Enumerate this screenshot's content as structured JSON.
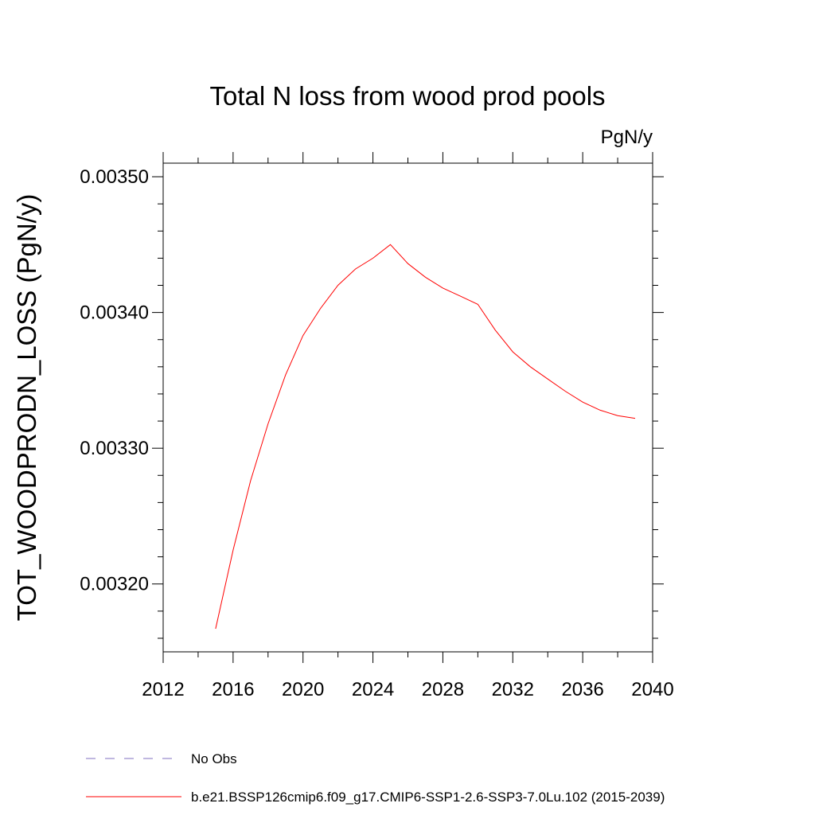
{
  "chart_data": {
    "type": "line",
    "title": "Total N loss from wood prod pools",
    "units_label": "PgN/y",
    "ylabel": "TOT_WOODPRODN_LOSS  (PgN/y)",
    "xlabel": "",
    "xlim": [
      2012,
      2040
    ],
    "ylim": [
      0.00315,
      0.00351
    ],
    "x_ticks": [
      2012,
      2016,
      2020,
      2024,
      2028,
      2032,
      2036,
      2040
    ],
    "x_tick_labels": [
      "2012",
      "2016",
      "2020",
      "2024",
      "2028",
      "2032",
      "2036",
      "2040"
    ],
    "y_ticks": [
      0.0032,
      0.0033,
      0.0034,
      0.0035
    ],
    "y_tick_labels": [
      "0.00320",
      "0.00330",
      "0.00340",
      "0.00350"
    ],
    "grid": false,
    "legend_position": "bottom",
    "series": [
      {
        "name": "b.e21.BSSP126cmip6.f09_g17.CMIP6-SSP1-2.6-SSP3-7.0Lu.102 (2015-2039)",
        "color": "#ff0000",
        "style": "solid",
        "x": [
          2015,
          2016,
          2017,
          2018,
          2019,
          2020,
          2021,
          2022,
          2023,
          2024,
          2025,
          2026,
          2027,
          2028,
          2029,
          2030,
          2031,
          2032,
          2033,
          2034,
          2035,
          2036,
          2037,
          2038,
          2039
        ],
        "y": [
          0.003167,
          0.003225,
          0.003276,
          0.003318,
          0.003354,
          0.003383,
          0.003403,
          0.00342,
          0.003432,
          0.00344,
          0.00345,
          0.003436,
          0.003426,
          0.003418,
          0.003412,
          0.003406,
          0.003387,
          0.003371,
          0.00336,
          0.003351,
          0.003342,
          0.003334,
          0.003328,
          0.003324,
          0.003322
        ]
      }
    ],
    "legend": [
      {
        "label": "No Obs",
        "color": "#8070c0",
        "style": "dashed"
      },
      {
        "label": "b.e21.BSSP126cmip6.f09_g17.CMIP6-SSP1-2.6-SSP3-7.0Lu.102 (2015-2039)",
        "color": "#ff0000",
        "style": "solid"
      }
    ]
  }
}
